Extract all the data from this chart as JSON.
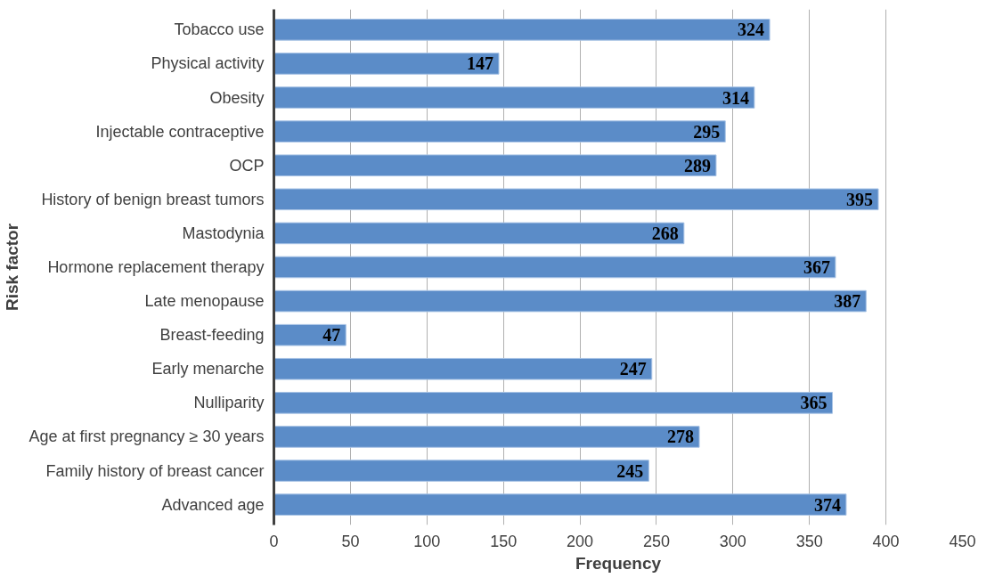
{
  "chart_data": {
    "type": "bar",
    "orientation": "horizontal",
    "xlabel": "Frequency",
    "ylabel": "Risk factor",
    "categories": [
      "Tobacco use",
      "Physical activity",
      "Obesity",
      "Injectable contraceptive",
      "OCP",
      "History of benign breast tumors",
      "Mastodynia",
      "Hormone replacement therapy",
      "Late menopause",
      "Breast-feeding",
      "Early menarche",
      "Nulliparity",
      "Age at first pregnancy ≥ 30 years",
      "Family history of breast cancer",
      "Advanced age"
    ],
    "values": [
      324,
      147,
      314,
      295,
      289,
      395,
      268,
      367,
      387,
      47,
      247,
      365,
      278,
      245,
      374
    ],
    "color": "#5b8cc8",
    "data_labels": true,
    "xlim": [
      0,
      450
    ],
    "xticks": [
      0,
      50,
      100,
      150,
      200,
      250,
      300,
      350,
      400,
      450
    ],
    "grid": "x"
  }
}
